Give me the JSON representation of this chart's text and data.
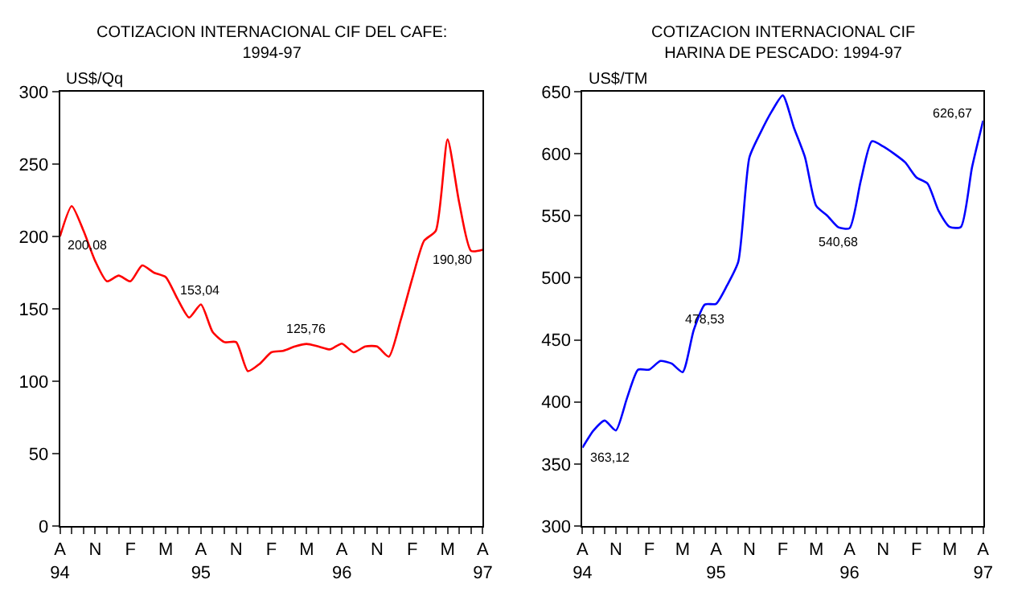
{
  "chart_data": [
    {
      "type": "line",
      "title": "COTIZACION INTERNACIONAL CIF DEL CAFE:\n1994-97",
      "ylabel": "US$/Qq",
      "categories": [
        "A\n94",
        null,
        null,
        "N",
        null,
        null,
        "F",
        null,
        null,
        "M",
        null,
        null,
        "A\n95",
        null,
        null,
        "N",
        null,
        null,
        "F",
        null,
        null,
        "M",
        null,
        null,
        "A\n96",
        null,
        null,
        "N",
        null,
        null,
        "F",
        null,
        null,
        "M",
        null,
        null,
        "A\n97"
      ],
      "series": [
        {
          "color": "#ff0000",
          "values": [
            200.08,
            221,
            204,
            183,
            169,
            173,
            169,
            180,
            175,
            172,
            157,
            144,
            153.04,
            134,
            127,
            127,
            107,
            112,
            120,
            121,
            124,
            125.76,
            124,
            122,
            126,
            120,
            124,
            124,
            117,
            142,
            171,
            197,
            204,
            267,
            223,
            190,
            190.8
          ]
        }
      ],
      "annotations": [
        {
          "text": "200,08",
          "y": 200.08
        },
        {
          "text": "153,04",
          "y": 153.04
        },
        {
          "text": "125,76",
          "y": 125.76
        },
        {
          "text": "190,80",
          "x": "A\n97",
          "y": 190.8
        }
      ],
      "ylim": [
        0,
        300
      ],
      "yticks": [
        0,
        50,
        100,
        150,
        200,
        250,
        300
      ],
      "marker": "none",
      "line_style": "solid"
    },
    {
      "type": "line",
      "title": "COTIZACION INTERNACIONAL CIF\nHARINA DE PESCADO: 1994-97",
      "ylabel": "US$/TM",
      "categories": [
        "A\n94",
        null,
        null,
        "N",
        null,
        null,
        "F",
        null,
        null,
        "M",
        null,
        null,
        "A\n95",
        null,
        null,
        "N",
        null,
        null,
        "F",
        null,
        null,
        "M",
        null,
        null,
        "A\n96",
        null,
        null,
        "N",
        null,
        null,
        "F",
        null,
        null,
        "M",
        null,
        null,
        "A\n97"
      ],
      "series": [
        {
          "color": "#0000ff",
          "values": [
            363.12,
            377,
            385,
            377,
            403,
            426,
            426,
            433,
            431,
            424,
            458,
            478.53,
            479,
            494,
            513,
            597,
            617,
            634,
            647,
            621,
            597,
            558,
            550,
            540.68,
            540,
            578,
            610,
            606,
            600,
            593,
            581,
            576,
            554,
            541,
            541,
            589,
            626.67
          ]
        }
      ],
      "annotations": [
        {
          "text": "363,12",
          "x": "A\n94",
          "y": 363.12
        },
        {
          "text": "478,53",
          "y": 478.53
        },
        {
          "text": "540,68",
          "y": 540.68
        },
        {
          "text": "626,67",
          "x": "A\n97",
          "y": 626.67
        }
      ],
      "ylim": [
        300,
        650
      ],
      "yticks": [
        300,
        350,
        400,
        450,
        500,
        550,
        600,
        650
      ],
      "marker": "none",
      "line_style": "solid"
    }
  ]
}
